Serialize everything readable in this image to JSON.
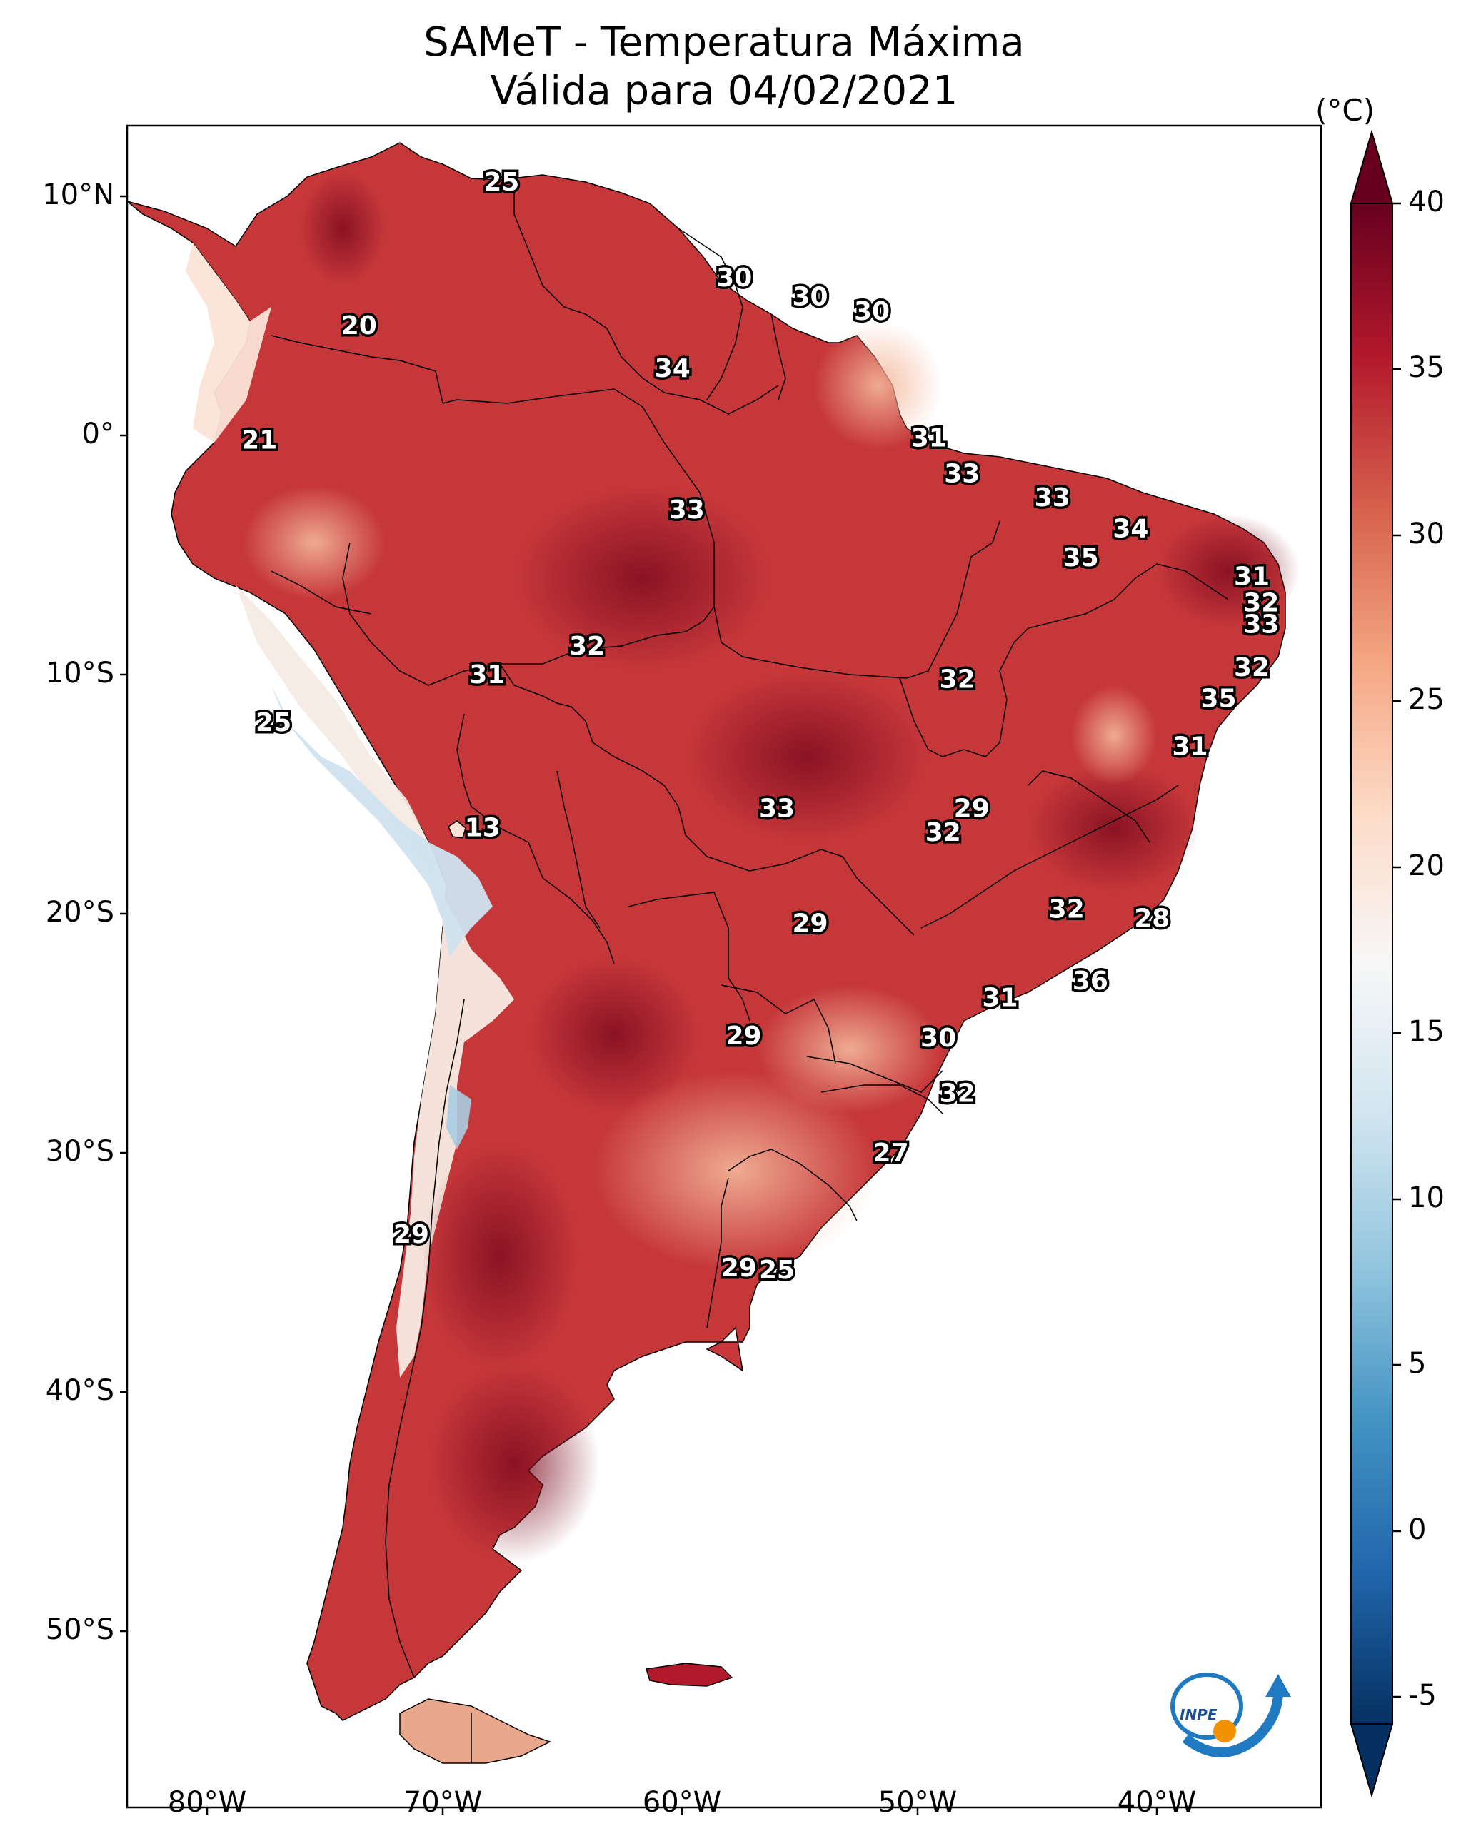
{
  "title": "SAMeT - Temperatura Máxima",
  "subtitle": "Válida para 04/02/2021",
  "colorbar": {
    "unit": "(°C)",
    "ticks": [
      "40",
      "35",
      "30",
      "25",
      "20",
      "15",
      "10",
      "5",
      "0",
      "-5"
    ],
    "range": [
      -5,
      40
    ],
    "colormap": "RdBu_r",
    "colors": [
      "#053061",
      "#2166ac",
      "#4393c3",
      "#92c5de",
      "#d1e5f0",
      "#f7f7f7",
      "#fddbc7",
      "#f4a582",
      "#d6604d",
      "#b2182b",
      "#67001f"
    ]
  },
  "axes": {
    "lat_labels": [
      "10°N",
      "0°",
      "10°S",
      "20°S",
      "30°S",
      "40°S",
      "50°S"
    ],
    "lon_labels": [
      "80°W",
      "70°W",
      "60°W",
      "50°W",
      "40°W"
    ]
  },
  "logo": {
    "text": "INPE",
    "name": "inpe-logo"
  },
  "values": [
    {
      "v": "25",
      "lon": -67.6,
      "lat": 10.6
    },
    {
      "v": "30",
      "lon": -57.8,
      "lat": 6.6
    },
    {
      "v": "30",
      "lon": -54.6,
      "lat": 5.8
    },
    {
      "v": "30",
      "lon": -52.0,
      "lat": 5.2
    },
    {
      "v": "20",
      "lon": -73.6,
      "lat": 4.6
    },
    {
      "v": "34",
      "lon": -60.4,
      "lat": 2.8
    },
    {
      "v": "21",
      "lon": -77.8,
      "lat": -0.2
    },
    {
      "v": "31",
      "lon": -49.6,
      "lat": -0.1
    },
    {
      "v": "33",
      "lon": -48.2,
      "lat": -1.6
    },
    {
      "v": "33",
      "lon": -59.8,
      "lat": -3.1
    },
    {
      "v": "33",
      "lon": -44.4,
      "lat": -2.6
    },
    {
      "v": "34",
      "lon": -41.1,
      "lat": -3.9
    },
    {
      "v": "35",
      "lon": -43.2,
      "lat": -5.1
    },
    {
      "v": "31",
      "lon": -36.0,
      "lat": -5.9
    },
    {
      "v": "32",
      "lon": -35.6,
      "lat": -7.0
    },
    {
      "v": "33",
      "lon": -35.6,
      "lat": -7.9
    },
    {
      "v": "32",
      "lon": -64.0,
      "lat": -8.8
    },
    {
      "v": "31",
      "lon": -68.2,
      "lat": -10.0
    },
    {
      "v": "32",
      "lon": -48.4,
      "lat": -10.2
    },
    {
      "v": "32",
      "lon": -36.0,
      "lat": -9.7
    },
    {
      "v": "35",
      "lon": -37.4,
      "lat": -11.0
    },
    {
      "v": "25",
      "lon": -77.2,
      "lat": -12.0
    },
    {
      "v": "31",
      "lon": -38.6,
      "lat": -13.0
    },
    {
      "v": "13",
      "lon": -68.4,
      "lat": -16.4
    },
    {
      "v": "33",
      "lon": -56.0,
      "lat": -15.6
    },
    {
      "v": "29",
      "lon": -47.8,
      "lat": -15.6
    },
    {
      "v": "32",
      "lon": -49.0,
      "lat": -16.6
    },
    {
      "v": "32",
      "lon": -43.8,
      "lat": -19.8
    },
    {
      "v": "28",
      "lon": -40.2,
      "lat": -20.2
    },
    {
      "v": "29",
      "lon": -54.6,
      "lat": -20.4
    },
    {
      "v": "36",
      "lon": -42.8,
      "lat": -22.8
    },
    {
      "v": "31",
      "lon": -46.6,
      "lat": -23.5
    },
    {
      "v": "29",
      "lon": -57.4,
      "lat": -25.1
    },
    {
      "v": "30",
      "lon": -49.2,
      "lat": -25.2
    },
    {
      "v": "32",
      "lon": -48.4,
      "lat": -27.5
    },
    {
      "v": "27",
      "lon": -51.2,
      "lat": -30.0
    },
    {
      "v": "29",
      "lon": -71.4,
      "lat": -33.4
    },
    {
      "v": "29",
      "lon": -57.6,
      "lat": -34.8
    },
    {
      "v": "25",
      "lon": -56.0,
      "lat": -34.9
    }
  ]
}
